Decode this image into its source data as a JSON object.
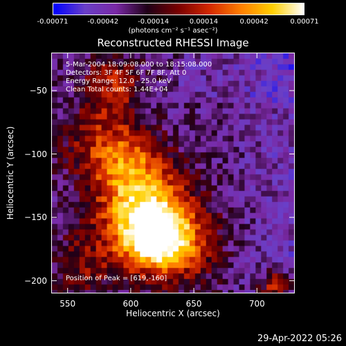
{
  "colorbar": {
    "ticks": [
      "-0.00071",
      "-0.00042",
      "-0.00014",
      "0.00014",
      "0.00042",
      "0.00071"
    ],
    "units": "(photons cm⁻² s⁻¹ asec⁻²)"
  },
  "annotations": {
    "time_range": "5-Mar-2004 18:09:08.000 to 18:15:08.000",
    "detectors": "Detectors: 3F 4F 5F 6F 7F 8F, Att 0",
    "energy": "Energy Range: 12.0 - 25.0 keV",
    "clean": "Clean     Total counts: 1.44E+04",
    "peak": "Position of Peak = [619,-160]"
  },
  "footer": {
    "date": "29-Apr-2022 05:26"
  },
  "chart_data": {
    "type": "heatmap",
    "title": "Reconstructed RHESSI Image",
    "xlabel": "Heliocentric X (arcsec)",
    "ylabel": "Heliocentric Y (arcsec)",
    "xlim": [
      537,
      730
    ],
    "ylim": [
      -210,
      -20
    ],
    "x_ticks": [
      550,
      600,
      650,
      700
    ],
    "y_ticks": [
      -50,
      -100,
      -150,
      -200
    ],
    "colorbar_range": [
      -0.00071,
      0.00071
    ],
    "peak": [
      619,
      -160
    ],
    "colormap": [
      "#0000ff",
      "#6a40c8",
      "#7a2aa6",
      "#200018",
      "#7a0000",
      "#d52a00",
      "#ff8000",
      "#ffd000",
      "#ffffff"
    ]
  }
}
